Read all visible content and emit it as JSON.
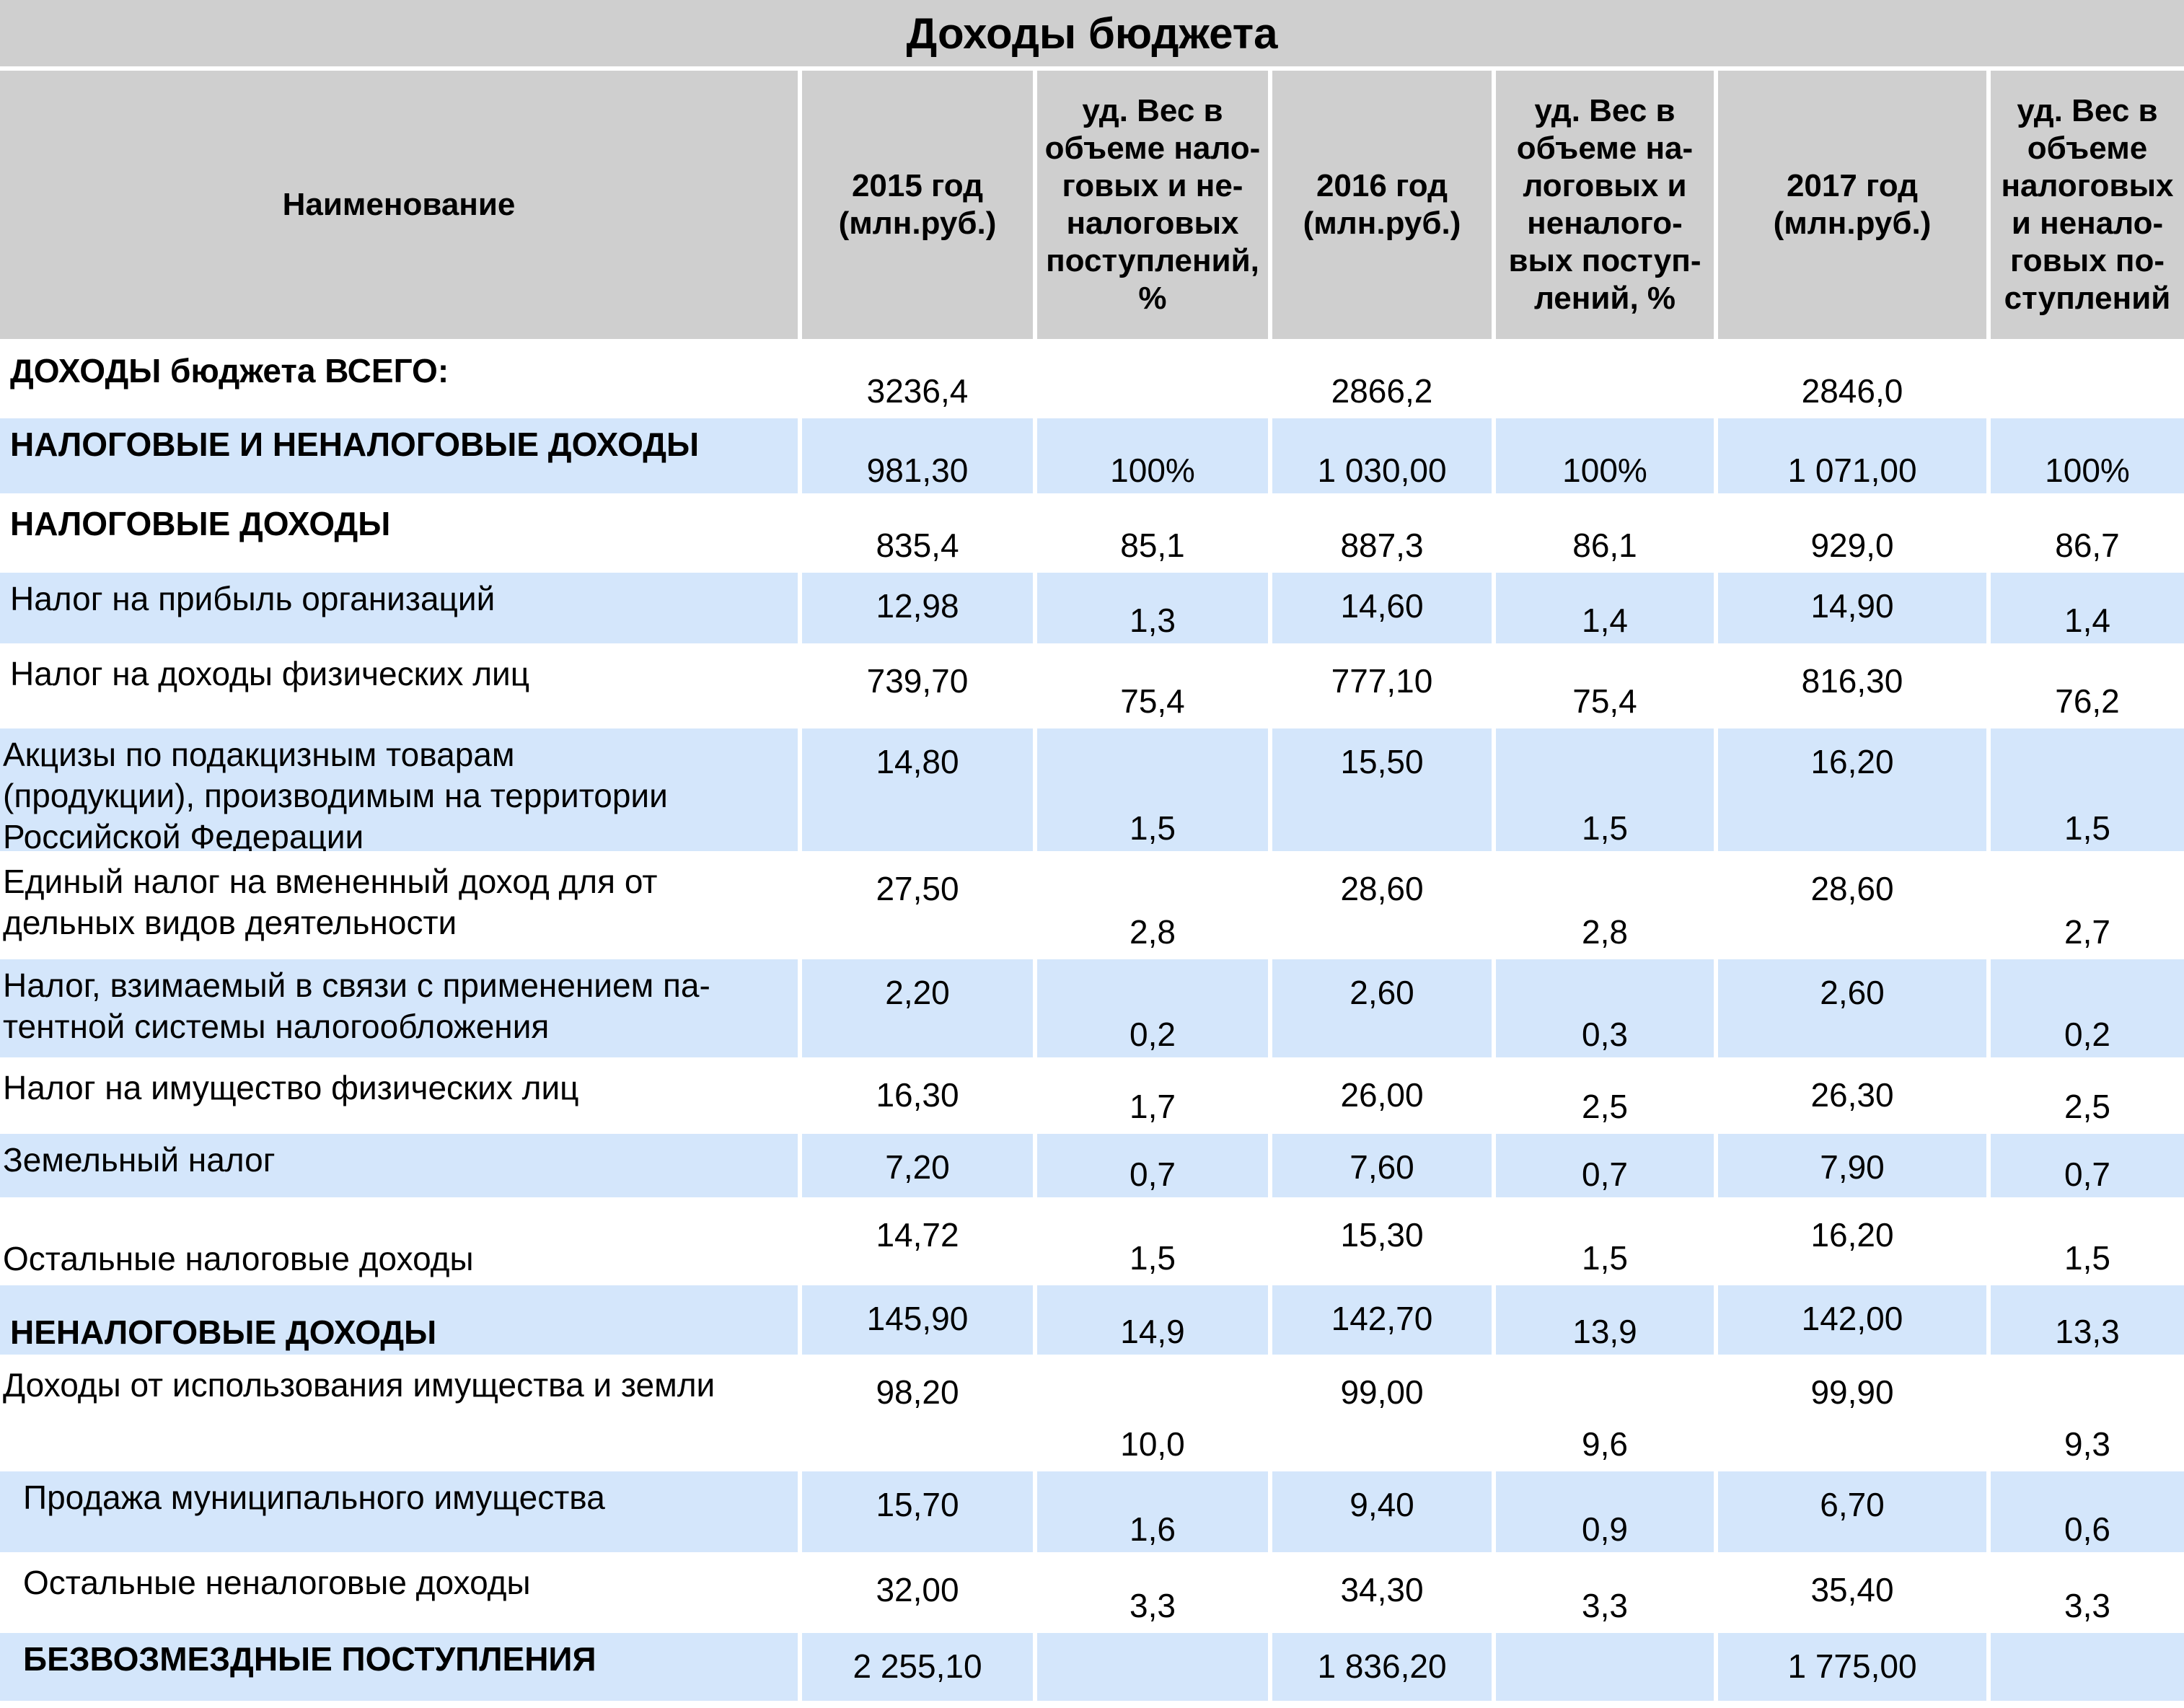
{
  "title": "Доходы бюджета",
  "colors": {
    "header_bg": "#cfcfcf",
    "stripe": "#d4e6fb",
    "background": "#ffffff"
  },
  "columns": [
    "Наименование",
    "2015 год\n(млн.руб.)",
    "уд. Вес в\nобъеме нало-\nговых и не-\nналоговых\nпоступлений,\n%",
    "2016 год\n(млн.руб.)",
    "уд. Вес в\nобъеме на-\nлоговых и\nненалого-\nвых поступ-\nлений,  %",
    "2017 год\n(млн.руб.)",
    "уд. Вес в\nобъеме\nналоговых\nи ненало-\nговых по-\nступлений"
  ],
  "rows": [
    {
      "name": "ДОХОДЫ бюджета  ВСЕГО:",
      "v2015": "3236,4",
      "s2015": "",
      "v2016": "2866,2",
      "s2016": "",
      "v2017": "2846,0",
      "s2017": ""
    },
    {
      "name": "НАЛОГОВЫЕ И НЕНАЛОГОВЫЕ ДОХОДЫ",
      "v2015": "981,30",
      "s2015": "100%",
      "v2016": "1 030,00",
      "s2016": "100%",
      "v2017": "1 071,00",
      "s2017": "100%"
    },
    {
      "name": "НАЛОГОВЫЕ ДОХОДЫ",
      "v2015": "835,4",
      "s2015": "85,1",
      "v2016": "887,3",
      "s2016": "86,1",
      "v2017": "929,0",
      "s2017": "86,7"
    },
    {
      "name": "Налог на прибыль организаций",
      "v2015": "12,98",
      "s2015": "1,3",
      "v2016": "14,60",
      "s2016": "1,4",
      "v2017": "14,90",
      "s2017": "1,4"
    },
    {
      "name": "Налог на доходы физических лиц",
      "v2015": "739,70",
      "s2015": "75,4",
      "v2016": "777,10",
      "s2016": "75,4",
      "v2017": "816,30",
      "s2017": "76,2"
    },
    {
      "name": " Акцизы по подакцизным товарам\n(продукции), производимым на территории\nРоссийской Федерации",
      "v2015": "14,80",
      "s2015": "1,5",
      "v2016": "15,50",
      "s2016": "1,5",
      "v2017": "16,20",
      "s2017": "1,5"
    },
    {
      "name": " Единый налог на вмененный доход для от\nдельных видов деятельности",
      "v2015": "27,50",
      "s2015": "2,8",
      "v2016": "28,60",
      "s2016": "2,8",
      "v2017": "28,60",
      "s2017": "2,7"
    },
    {
      "name": " Налог, взимаемый в связи с применением па-\nтентной системы налогообложения",
      "v2015": "2,20",
      "s2015": "0,2",
      "v2016": "2,60",
      "s2016": "0,3",
      "v2017": "2,60",
      "s2017": "0,2"
    },
    {
      "name": " Налог на имущество физических лиц",
      "v2015": "16,30",
      "s2015": "1,7",
      "v2016": "26,00",
      "s2016": "2,5",
      "v2017": "26,30",
      "s2017": "2,5"
    },
    {
      "name": " Земельный налог",
      "v2015": "7,20",
      "s2015": "0,7",
      "v2016": "7,60",
      "s2016": "0,7",
      "v2017": "7,90",
      "s2017": "0,7"
    },
    {
      "name": "Остальные налоговые доходы",
      "v2015": "14,72",
      "s2015": "1,5",
      "v2016": "15,30",
      "s2016": "1,5",
      "v2017": "16,20",
      "s2017": "1,5"
    },
    {
      "name": "НЕНАЛОГОВЫЕ ДОХОДЫ",
      "v2015": "145,90",
      "s2015": "14,9",
      "v2016": "142,70",
      "s2016": "13,9",
      "v2017": "142,00",
      "s2017": "13,3"
    },
    {
      "name": "Доходы от использования имущества и земли",
      "v2015": "98,20",
      "s2015": "10,0",
      "v2016": "99,00",
      "s2016": "9,6",
      "v2017": "99,90",
      "s2017": "9,3"
    },
    {
      "name": "Продажа муниципального имущества",
      "v2015": "15,70",
      "s2015": "1,6",
      "v2016": "9,40",
      "s2016": "0,9",
      "v2017": "6,70",
      "s2017": "0,6"
    },
    {
      "name": "Остальные неналоговые доходы",
      "v2015": "32,00",
      "s2015": "3,3",
      "v2016": "34,30",
      "s2016": "3,3",
      "v2017": "35,40",
      "s2017": "3,3"
    },
    {
      "name": "БЕЗВОЗМЕЗДНЫЕ ПОСТУПЛЕНИЯ",
      "v2015": "2 255,10",
      "s2015": "",
      "v2016": "1 836,20",
      "s2016": "",
      "v2017": "1 775,00",
      "s2017": ""
    }
  ]
}
